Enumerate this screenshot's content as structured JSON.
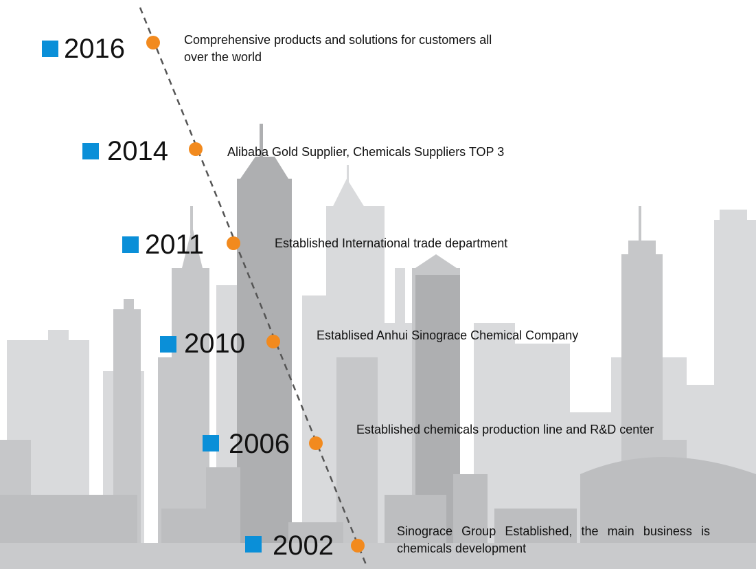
{
  "colors": {
    "accent_square": "#0a8fd8",
    "timeline_dot": "#f28a1e",
    "timeline_line": "#555555",
    "skyline_dark": "#b4b5b7",
    "skyline_light": "#d4d5d7"
  },
  "timeline": [
    {
      "year": "2016",
      "text": "Comprehensive products and solutions for customers all over the world"
    },
    {
      "year": "2014",
      "text": "Alibaba Gold Supplier, Chemicals Suppliers TOP 3"
    },
    {
      "year": "2011",
      "text": "Established International trade department"
    },
    {
      "year": "2010",
      "text": "Establised Anhui Sinograce Chemical Company"
    },
    {
      "year": "2006",
      "text": "Established chemicals production line and R&D center"
    },
    {
      "year": "2002",
      "text": "Sinograce Group Established, the main business is chemicals development"
    }
  ]
}
